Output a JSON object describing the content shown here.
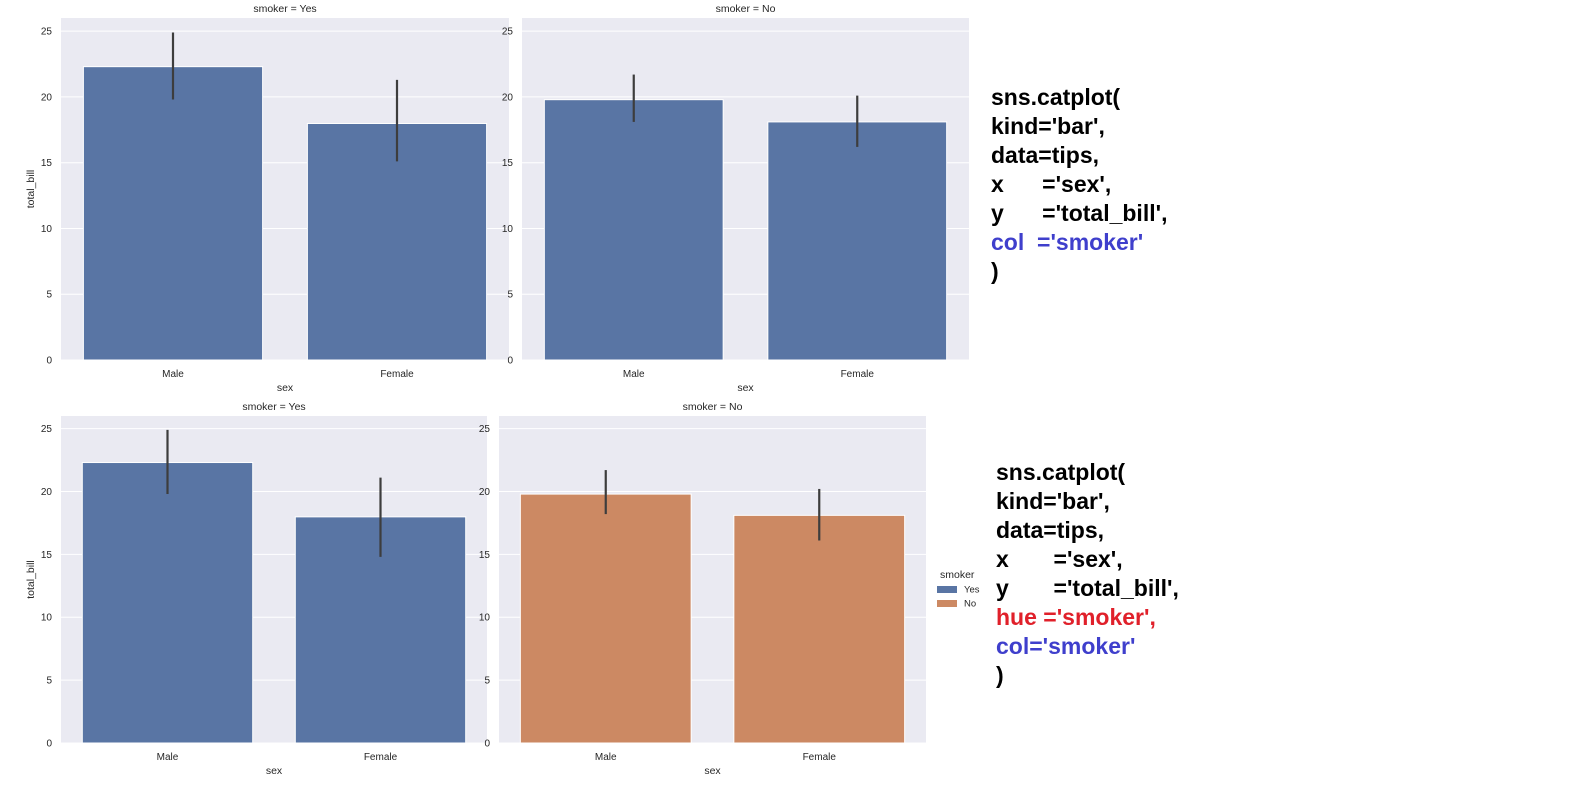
{
  "colors": {
    "panel_bg": "#eaeaf2",
    "bar_yes": "#5975a4",
    "bar_no": "#cc8963",
    "errbar": "#3d3d3d",
    "code_blue": "#3f3fcc",
    "code_red": "#e0202a"
  },
  "chart_data": [
    {
      "type": "bar",
      "facet_title": "smoker = Yes",
      "categories": [
        "Male",
        "Female"
      ],
      "values": [
        22.3,
        17.98
      ],
      "ci": [
        [
          19.8,
          24.9
        ],
        [
          15.1,
          21.3
        ]
      ],
      "color": "bar_yes",
      "xlabel": "sex",
      "ylabel": "total_bill",
      "ylim": [
        0,
        26
      ],
      "yticks": [
        0,
        5,
        10,
        15,
        20,
        25
      ],
      "grid": true
    },
    {
      "type": "bar",
      "facet_title": "smoker = No",
      "categories": [
        "Male",
        "Female"
      ],
      "values": [
        19.79,
        18.1
      ],
      "ci": [
        [
          18.1,
          21.7
        ],
        [
          16.2,
          20.1
        ]
      ],
      "color": "bar_yes",
      "xlabel": "sex",
      "ylabel": "",
      "ylim": [
        0,
        26
      ],
      "yticks": [
        0,
        5,
        10,
        15,
        20,
        25
      ],
      "grid": true
    },
    {
      "type": "bar",
      "facet_title": "smoker = Yes",
      "categories": [
        "Male",
        "Female"
      ],
      "values": [
        22.3,
        17.98
      ],
      "ci": [
        [
          19.8,
          24.9
        ],
        [
          14.8,
          21.1
        ]
      ],
      "color": "bar_yes",
      "xlabel": "sex",
      "ylabel": "total_bill",
      "ylim": [
        0,
        26
      ],
      "yticks": [
        0,
        5,
        10,
        15,
        20,
        25
      ],
      "grid": true
    },
    {
      "type": "bar",
      "facet_title": "smoker = No",
      "categories": [
        "Male",
        "Female"
      ],
      "values": [
        19.79,
        18.1
      ],
      "ci": [
        [
          18.2,
          21.7
        ],
        [
          16.1,
          20.2
        ]
      ],
      "color": "bar_no",
      "xlabel": "sex",
      "ylabel": "",
      "ylim": [
        0,
        26
      ],
      "yticks": [
        0,
        5,
        10,
        15,
        20,
        25
      ],
      "grid": true
    }
  ],
  "legend": {
    "title": "smoker",
    "items": [
      {
        "label": "Yes",
        "color": "bar_yes"
      },
      {
        "label": "No",
        "color": "bar_no"
      }
    ]
  },
  "code_blocks": [
    {
      "lines": [
        [
          {
            "text": "sns.catplot(",
            "color": "#000000"
          }
        ],
        [
          {
            "text": "kind='bar',",
            "color": "#000000"
          }
        ],
        [
          {
            "text": "data=tips,",
            "color": "#000000"
          }
        ],
        [
          {
            "text": "x      ='sex',",
            "color": "#000000"
          }
        ],
        [
          {
            "text": "y      ='total_bill',",
            "color": "#000000"
          }
        ],
        [
          {
            "text": "col  ='smoker'",
            "color": "#3f3fcc"
          }
        ],
        [
          {
            "text": ")",
            "color": "#000000"
          }
        ]
      ]
    },
    {
      "lines": [
        [
          {
            "text": "sns.catplot(",
            "color": "#000000"
          }
        ],
        [
          {
            "text": "kind='bar',",
            "color": "#000000"
          }
        ],
        [
          {
            "text": "data=tips,",
            "color": "#000000"
          }
        ],
        [
          {
            "text": "x       ='sex',",
            "color": "#000000"
          }
        ],
        [
          {
            "text": "y       ='total_bill',",
            "color": "#000000"
          }
        ],
        [
          {
            "text": "hue ='smoker',",
            "color": "#e0202a"
          }
        ],
        [
          {
            "text": "col='smoker'",
            "color": "#3f3fcc"
          }
        ],
        [
          {
            "text": ")",
            "color": "#000000"
          }
        ]
      ]
    }
  ]
}
